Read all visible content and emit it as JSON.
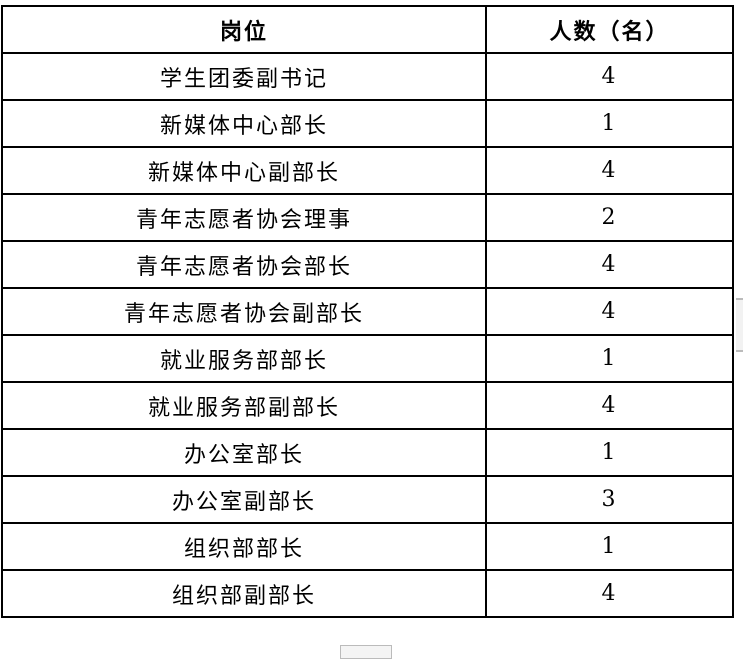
{
  "table": {
    "headers": [
      "岗位",
      "人数（名）"
    ],
    "rows": [
      [
        "学生团委副书记",
        "4"
      ],
      [
        "新媒体中心部长",
        "1"
      ],
      [
        "新媒体中心副部长",
        "4"
      ],
      [
        "青年志愿者协会理事",
        "2"
      ],
      [
        "青年志愿者协会部长",
        "4"
      ],
      [
        "青年志愿者协会副部长",
        "4"
      ],
      [
        "就业服务部部长",
        "1"
      ],
      [
        "就业服务部副部长",
        "4"
      ],
      [
        "办公室部长",
        "1"
      ],
      [
        "办公室副部长",
        "3"
      ],
      [
        "组织部部长",
        "1"
      ],
      [
        "组织部副部长",
        "4"
      ]
    ]
  }
}
